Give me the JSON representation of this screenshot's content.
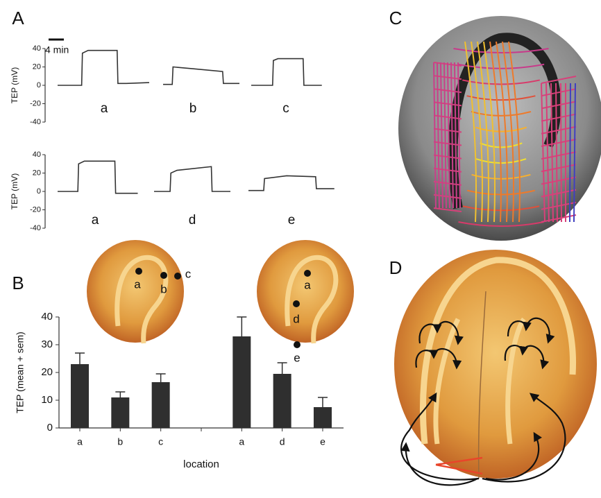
{
  "chart_data": [
    {
      "type": "line",
      "panel": "A",
      "ylabel": "TEP (mV)",
      "ylim": [
        -40,
        40
      ],
      "yticks": [
        -40,
        -20,
        0,
        20,
        40
      ],
      "scale_bar": {
        "label": "4 min",
        "value": 4
      },
      "series": [
        {
          "name": "a",
          "color": "#333333",
          "x": [
            0,
            6.3,
            6.5,
            8,
            15.6,
            15.8,
            18,
            24
          ],
          "values": [
            0,
            0,
            35,
            38,
            38,
            2,
            2,
            3
          ]
        },
        {
          "name": "b",
          "color": "#333333",
          "x": [
            0,
            2.4,
            2.6,
            8,
            15.6,
            15.8,
            20
          ],
          "values": [
            1,
            1,
            20,
            18,
            15,
            2,
            2
          ]
        },
        {
          "name": "c",
          "color": "#333333",
          "x": [
            0,
            5.6,
            5.8,
            7,
            13.6,
            13.8,
            18.5
          ],
          "values": [
            0,
            0,
            27,
            29,
            29,
            0,
            0
          ]
        }
      ]
    },
    {
      "type": "line",
      "ylabel": "TEP (mV)",
      "ylim": [
        -40,
        40
      ],
      "yticks": [
        -40,
        -20,
        0,
        20,
        40
      ],
      "series": [
        {
          "name": "a",
          "color": "#333333",
          "x": [
            0,
            5.3,
            5.5,
            7,
            15,
            15.2,
            21
          ],
          "values": [
            0,
            0,
            30,
            33,
            33,
            -2,
            -2
          ]
        },
        {
          "name": "d",
          "color": "#333333",
          "x": [
            0,
            4.2,
            4.4,
            6,
            15,
            15.2,
            20
          ],
          "values": [
            0,
            0,
            20,
            23,
            27,
            0,
            0
          ]
        },
        {
          "name": "e",
          "color": "#333333",
          "x": [
            0,
            4,
            4.2,
            10,
            17.6,
            17.8,
            22.5
          ],
          "values": [
            1,
            1,
            14,
            17,
            16,
            3,
            3
          ]
        }
      ]
    },
    {
      "type": "bar",
      "panel": "B",
      "ylabel": "TEP (mean + sem)",
      "xlabel": "location",
      "categories": [
        "a",
        "b",
        "c",
        null,
        "a",
        "d",
        "e"
      ],
      "values": [
        23,
        11,
        16.5,
        null,
        33,
        19.5,
        7.5
      ],
      "errors": [
        4,
        2,
        3,
        null,
        7,
        4,
        3.5
      ],
      "color": "#2f2f2f",
      "ylim": [
        0,
        40
      ],
      "yticks": [
        0,
        10,
        20,
        30,
        40
      ]
    }
  ],
  "embryo_labels": {
    "left": [
      "a",
      "b",
      "c"
    ],
    "right": [
      "a",
      "d",
      "e"
    ]
  },
  "illustrations": {
    "panel_c": "C",
    "panel_d": "D"
  }
}
